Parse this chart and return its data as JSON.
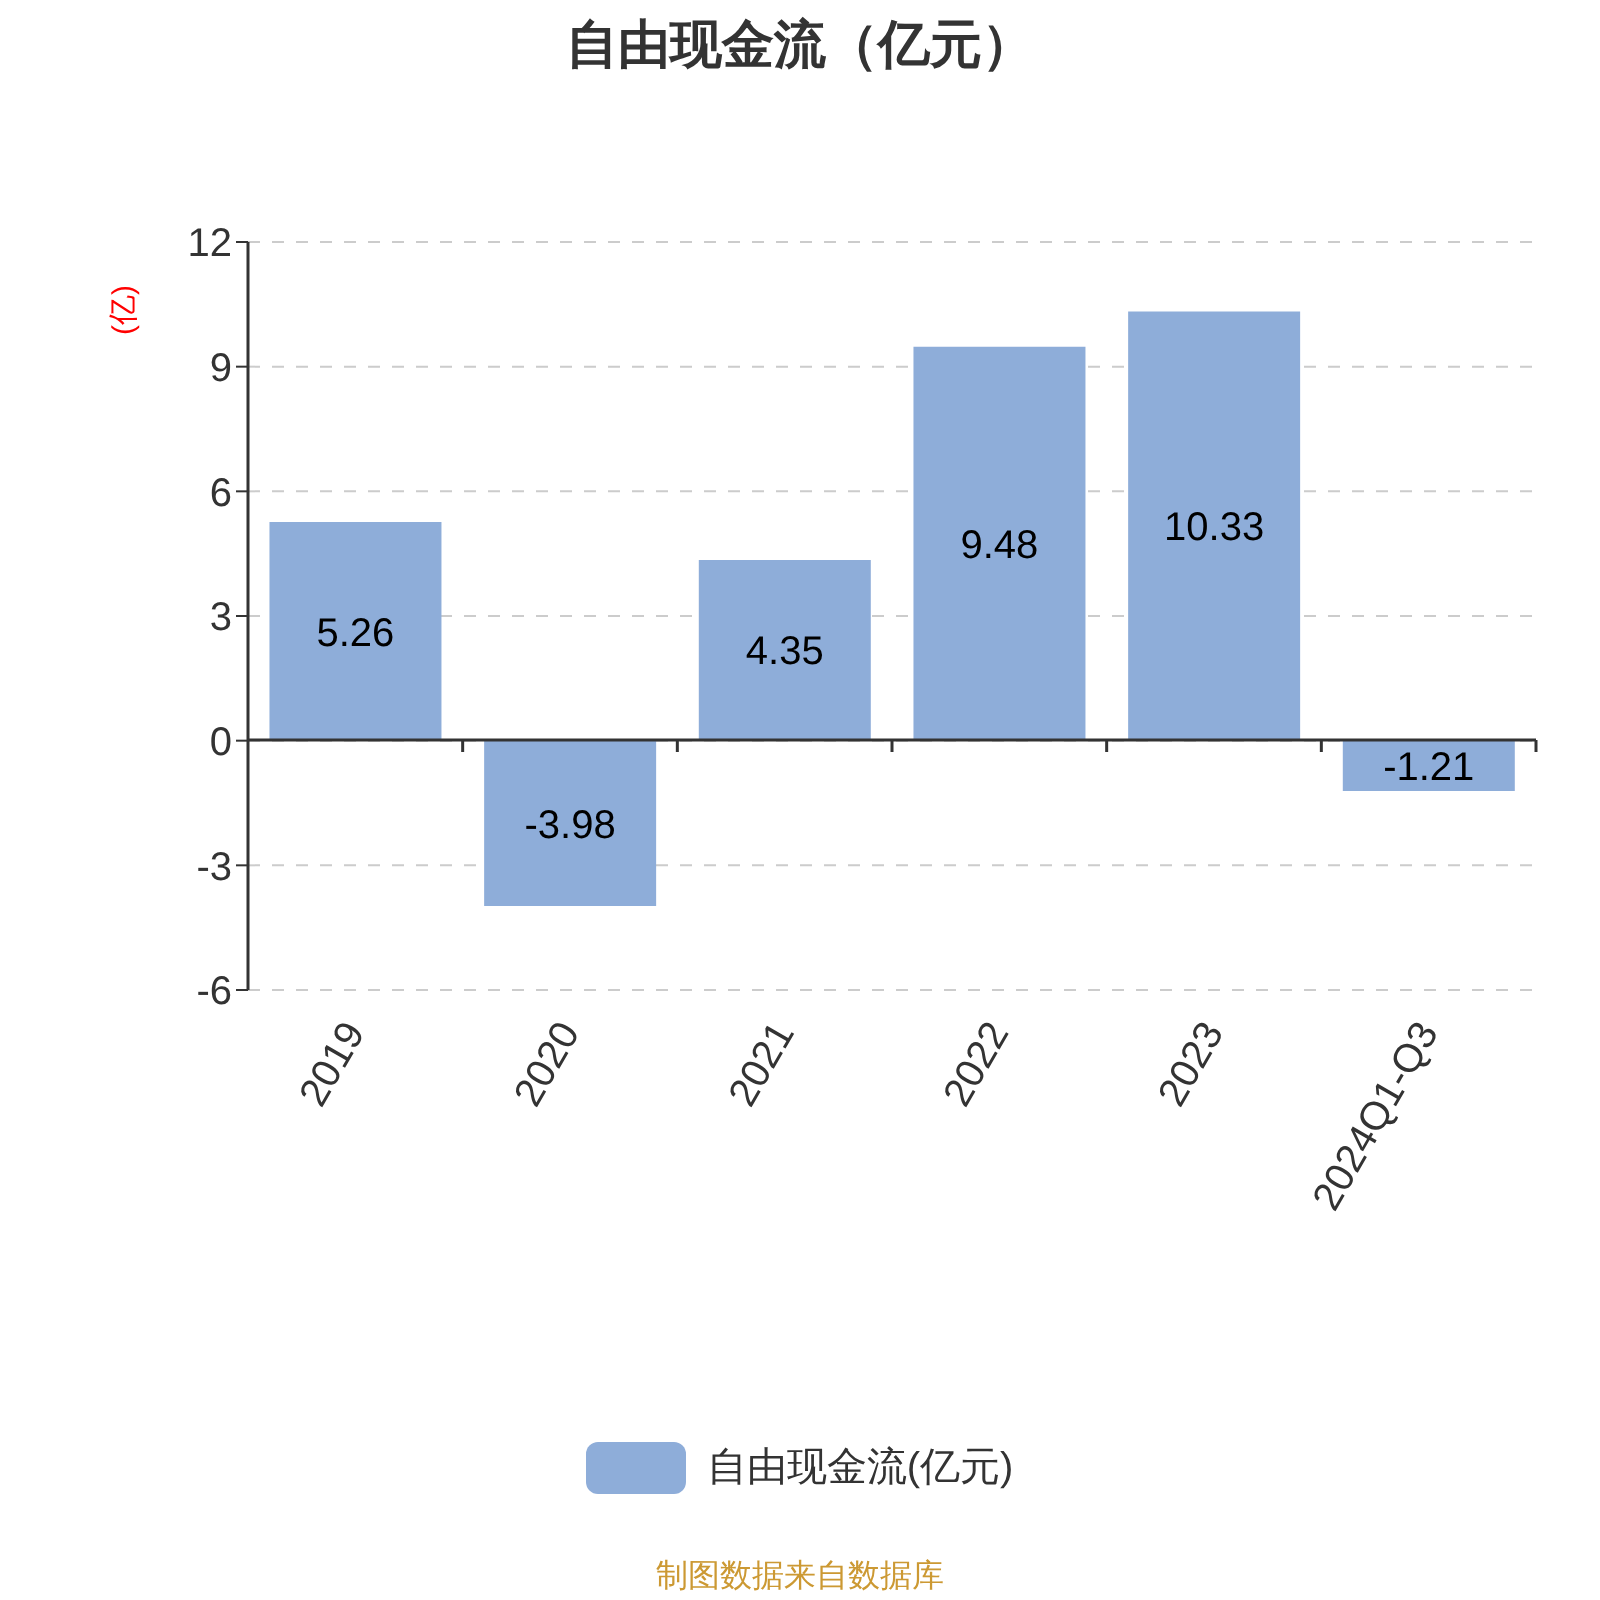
{
  "chart_data": {
    "type": "bar",
    "title": "自由现金流（亿元）",
    "ylabel": "(亿)",
    "categories": [
      "2019",
      "2020",
      "2021",
      "2022",
      "2023",
      "2024Q1-Q3"
    ],
    "series": [
      {
        "name": "自由现金流(亿元)",
        "color": "#8eadd9",
        "values": [
          5.26,
          -3.98,
          4.35,
          9.48,
          10.33,
          -1.21
        ]
      }
    ],
    "ylim": [
      -6,
      12
    ],
    "yticks": [
      -6,
      -3,
      0,
      3,
      6,
      9,
      12
    ],
    "grid": "y",
    "legend": "bottom",
    "data_labels": true,
    "annotations": [
      "制图数据来自数据库"
    ]
  }
}
